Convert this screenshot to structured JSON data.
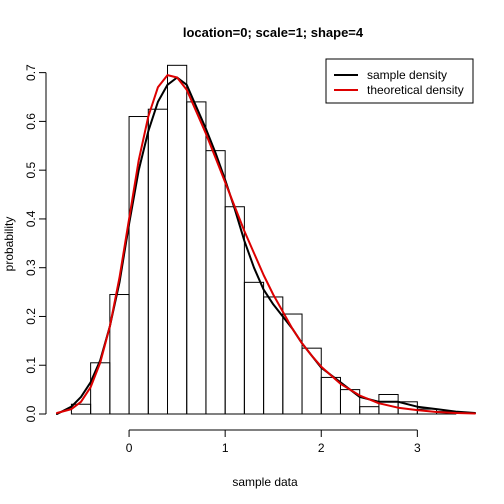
{
  "chart_data": {
    "type": "histogram",
    "title": "location=0; scale=1; shape=4",
    "xlabel": "sample data",
    "ylabel": "probability",
    "xlim": [
      -0.75,
      3.6
    ],
    "ylim": [
      0,
      0.73
    ],
    "xticks": [
      0,
      1,
      2,
      3
    ],
    "yticks": [
      0.0,
      0.1,
      0.2,
      0.3,
      0.4,
      0.5,
      0.6,
      0.7
    ],
    "xtick_labels": [
      "0",
      "1",
      "2",
      "3"
    ],
    "ytick_labels": [
      "0.0",
      "0.1",
      "0.2",
      "0.3",
      "0.4",
      "0.5",
      "0.6",
      "0.7"
    ],
    "legend": {
      "position": "top-right",
      "entries": [
        {
          "label": "sample density",
          "color": "#000000"
        },
        {
          "label": "theoretical density",
          "color": "#dd0000"
        }
      ]
    },
    "histogram": {
      "bin_width": 0.2,
      "bins": [
        {
          "x0": -0.6,
          "value": 0.02
        },
        {
          "x0": -0.4,
          "value": 0.105
        },
        {
          "x0": -0.2,
          "value": 0.245
        },
        {
          "x0": 0.0,
          "value": 0.61
        },
        {
          "x0": 0.2,
          "value": 0.625
        },
        {
          "x0": 0.4,
          "value": 0.715
        },
        {
          "x0": 0.6,
          "value": 0.64
        },
        {
          "x0": 0.8,
          "value": 0.54
        },
        {
          "x0": 1.0,
          "value": 0.425
        },
        {
          "x0": 1.2,
          "value": 0.27
        },
        {
          "x0": 1.4,
          "value": 0.24
        },
        {
          "x0": 1.6,
          "value": 0.205
        },
        {
          "x0": 1.8,
          "value": 0.135
        },
        {
          "x0": 2.0,
          "value": 0.075
        },
        {
          "x0": 2.2,
          "value": 0.05
        },
        {
          "x0": 2.4,
          "value": 0.015
        },
        {
          "x0": 2.6,
          "value": 0.04
        },
        {
          "x0": 2.8,
          "value": 0.025
        },
        {
          "x0": 3.0,
          "value": 0.01
        },
        {
          "x0": 3.2,
          "value": 0.005
        }
      ]
    },
    "series": [
      {
        "name": "sample density",
        "color": "#000000",
        "x": [
          -0.75,
          -0.6,
          -0.5,
          -0.4,
          -0.3,
          -0.2,
          -0.1,
          0.0,
          0.1,
          0.2,
          0.3,
          0.4,
          0.5,
          0.6,
          0.7,
          0.8,
          0.9,
          1.0,
          1.1,
          1.2,
          1.3,
          1.4,
          1.5,
          1.6,
          1.7,
          1.8,
          1.9,
          2.0,
          2.2,
          2.4,
          2.6,
          2.8,
          3.0,
          3.2,
          3.4,
          3.6
        ],
        "y": [
          0.0,
          0.015,
          0.035,
          0.065,
          0.11,
          0.18,
          0.27,
          0.39,
          0.5,
          0.58,
          0.64,
          0.675,
          0.69,
          0.675,
          0.63,
          0.585,
          0.535,
          0.48,
          0.42,
          0.355,
          0.3,
          0.255,
          0.225,
          0.2,
          0.175,
          0.145,
          0.12,
          0.095,
          0.065,
          0.035,
          0.025,
          0.025,
          0.015,
          0.01,
          0.005,
          0.002
        ]
      },
      {
        "name": "theoretical density",
        "color": "#dd0000",
        "x": [
          -0.75,
          -0.6,
          -0.5,
          -0.4,
          -0.3,
          -0.2,
          -0.1,
          0.0,
          0.1,
          0.2,
          0.3,
          0.4,
          0.5,
          0.6,
          0.7,
          0.8,
          0.9,
          1.0,
          1.1,
          1.2,
          1.3,
          1.4,
          1.5,
          1.6,
          1.7,
          1.8,
          1.9,
          2.0,
          2.2,
          2.4,
          2.6,
          2.8,
          3.0,
          3.2,
          3.4,
          3.6
        ],
        "y": [
          0.002,
          0.01,
          0.025,
          0.055,
          0.105,
          0.18,
          0.28,
          0.4,
          0.52,
          0.61,
          0.67,
          0.695,
          0.69,
          0.665,
          0.62,
          0.575,
          0.525,
          0.475,
          0.425,
          0.375,
          0.33,
          0.285,
          0.245,
          0.21,
          0.175,
          0.145,
          0.12,
          0.097,
          0.062,
          0.038,
          0.022,
          0.013,
          0.008,
          0.004,
          0.002,
          0.001
        ]
      }
    ]
  }
}
